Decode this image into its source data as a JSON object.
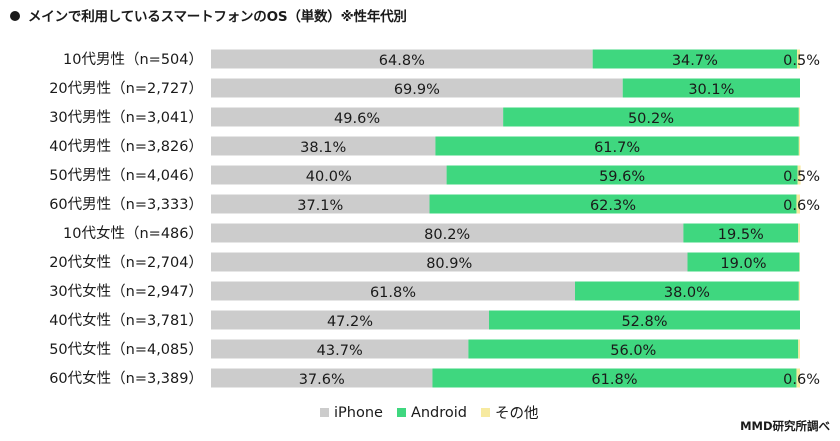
{
  "chart_data": {
    "type": "bar",
    "stacked": true,
    "orientation": "horizontal",
    "percent": true,
    "title": "メインで利用しているスマートフォンのOS（単数）※性年代別",
    "categories": [
      "10代男性（n=504）",
      "20代男性（n=2,727）",
      "30代男性（n=3,041）",
      "40代男性（n=3,826）",
      "50代男性（n=4,046）",
      "60代男性（n=3,333）",
      "10代女性（n=486）",
      "20代女性（n=2,704）",
      "30代女性（n=2,947）",
      "40代女性（n=3,781）",
      "50代女性（n=4,085）",
      "60代女性（n=3,389）"
    ],
    "series": [
      {
        "name": "iPhone",
        "color": "#cccccc",
        "values": [
          64.8,
          69.9,
          49.6,
          38.1,
          40.0,
          37.1,
          80.2,
          80.9,
          61.8,
          47.2,
          43.7,
          37.6
        ]
      },
      {
        "name": "Android",
        "color": "#3fd77f",
        "values": [
          34.7,
          30.1,
          50.2,
          61.7,
          59.6,
          62.3,
          19.5,
          19.0,
          38.0,
          52.8,
          56.0,
          61.8
        ]
      },
      {
        "name": "その他",
        "color": "#f7eaa0",
        "values": [
          0.5,
          0.0,
          0.2,
          0.2,
          0.5,
          0.6,
          0.3,
          0.1,
          0.2,
          0.0,
          0.3,
          0.6
        ]
      }
    ],
    "data_labels": [
      [
        "64.8%",
        "34.7%",
        "0.5%"
      ],
      [
        "69.9%",
        "30.1%",
        ""
      ],
      [
        "49.6%",
        "50.2%",
        ""
      ],
      [
        "38.1%",
        "61.7%",
        ""
      ],
      [
        "40.0%",
        "59.6%",
        "0.5%"
      ],
      [
        "37.1%",
        "62.3%",
        "0.6%"
      ],
      [
        "80.2%",
        "19.5%",
        ""
      ],
      [
        "80.9%",
        "19.0%",
        ""
      ],
      [
        "61.8%",
        "38.0%",
        ""
      ],
      [
        "47.2%",
        "52.8%",
        ""
      ],
      [
        "43.7%",
        "56.0%",
        ""
      ],
      [
        "37.6%",
        "61.8%",
        "0.6%"
      ]
    ],
    "xlim": [
      0,
      100
    ],
    "legend_position": "bottom",
    "grid": false
  },
  "source": "MMD研究所調べ"
}
